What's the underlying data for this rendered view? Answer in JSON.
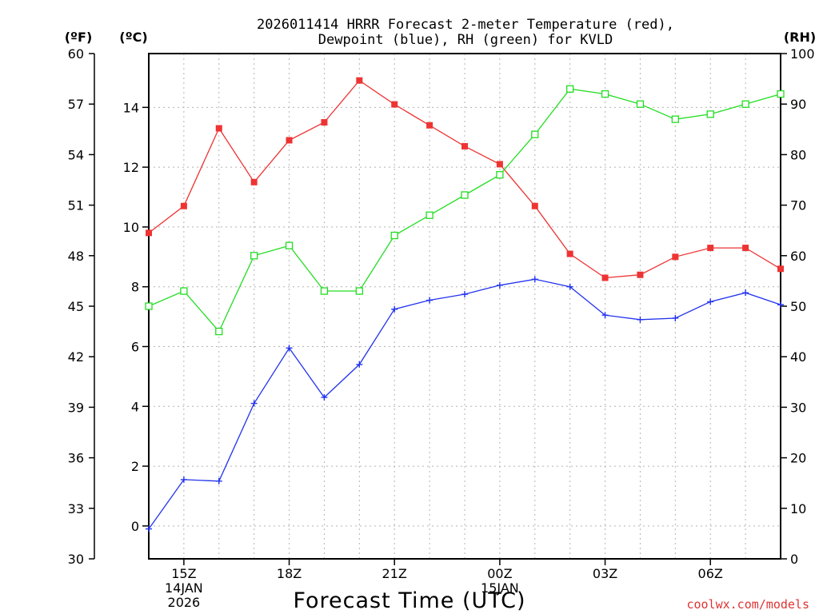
{
  "chart_data": {
    "type": "line",
    "title_line1": "2026011414 HRRR Forecast 2-meter Temperature (red),",
    "title_line2": "Dewpoint (blue), RH (green) for KVLD",
    "xlabel": "Forecast Time (UTC)",
    "left_outer_unit": "(ºF)",
    "left_inner_unit": "(ºC)",
    "right_unit": "(RH)",
    "x_hours": [
      14,
      15,
      16,
      17,
      18,
      19,
      20,
      21,
      22,
      23,
      24,
      25,
      26,
      27,
      28,
      29,
      30,
      31,
      32
    ],
    "x_ticks": [
      {
        "hour": 15,
        "lines": [
          "15Z",
          "14JAN",
          "2026"
        ]
      },
      {
        "hour": 18,
        "lines": [
          "18Z"
        ]
      },
      {
        "hour": 21,
        "lines": [
          "21Z"
        ]
      },
      {
        "hour": 24,
        "lines": [
          "00Z",
          "15JAN"
        ]
      },
      {
        "hour": 27,
        "lines": [
          "03Z"
        ]
      },
      {
        "hour": 30,
        "lines": [
          "06Z"
        ]
      }
    ],
    "xlim": [
      14,
      32
    ],
    "celsius_axis": {
      "ylim": [
        -1.1,
        15.8
      ],
      "ticks": [
        0,
        2,
        4,
        6,
        8,
        10,
        12,
        14
      ]
    },
    "fahrenheit_axis": {
      "ylim": [
        30,
        60
      ],
      "ticks": [
        30,
        33,
        36,
        39,
        42,
        45,
        48,
        51,
        54,
        57,
        60
      ]
    },
    "rh_axis": {
      "ylim": [
        0,
        100
      ],
      "ticks": [
        0,
        10,
        20,
        30,
        40,
        50,
        60,
        70,
        80,
        90,
        100
      ]
    },
    "series": [
      {
        "name": "Temperature",
        "color": "#ee3333",
        "axis": "celsius",
        "marker": "filled-square",
        "values": [
          9.8,
          10.7,
          13.3,
          11.5,
          12.9,
          13.5,
          14.9,
          14.1,
          13.4,
          12.7,
          12.1,
          10.7,
          9.1,
          8.3,
          8.4,
          9.0,
          9.3,
          9.3,
          8.6
        ]
      },
      {
        "name": "Dewpoint",
        "color": "#2233ee",
        "axis": "celsius",
        "marker": "plus",
        "values": [
          -0.1,
          1.55,
          1.5,
          4.1,
          5.95,
          4.3,
          5.4,
          7.25,
          7.55,
          7.75,
          8.05,
          8.25,
          8.0,
          7.05,
          6.9,
          6.95,
          7.5,
          7.8,
          7.4
        ]
      },
      {
        "name": "RH",
        "color": "#22dd22",
        "axis": "rh",
        "marker": "open-square",
        "values": [
          50,
          53,
          45,
          60,
          62,
          53,
          53,
          64,
          68,
          72,
          76,
          84,
          93,
          92,
          90,
          87,
          88,
          90,
          92
        ]
      }
    ],
    "credit": "coolwx.com/models",
    "credit_color": "#dd3333",
    "grid": true
  }
}
